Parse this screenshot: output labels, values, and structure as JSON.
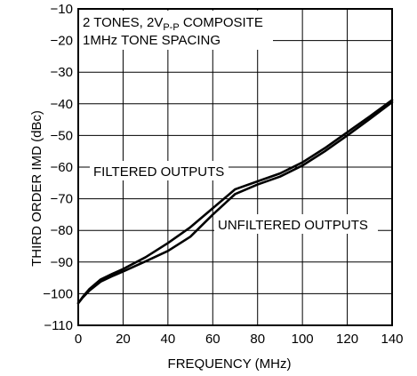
{
  "chart_data": {
    "type": "line",
    "title": "",
    "xlabel": "FREQUENCY (MHz)",
    "ylabel": "THIRD ORDER IMD (dBc)",
    "xlim": [
      0,
      140
    ],
    "ylim": [
      -110,
      -10
    ],
    "x_ticks": [
      "0",
      "20",
      "40",
      "60",
      "80",
      "100",
      "120",
      "140"
    ],
    "y_ticks": [
      "−10",
      "−20",
      "−30",
      "−40",
      "−50",
      "−60",
      "−70",
      "−80",
      "−90",
      "−100",
      "−110"
    ],
    "x_tick_values": [
      0,
      20,
      40,
      60,
      80,
      100,
      120,
      140
    ],
    "y_tick_values": [
      -10,
      -20,
      -30,
      -40,
      -50,
      -60,
      -70,
      -80,
      -90,
      -100,
      -110
    ],
    "grid": true,
    "series": [
      {
        "name": "FILTERED OUTPUTS",
        "x": [
          0,
          2,
          5,
          10,
          15,
          20,
          30,
          40,
          50,
          60,
          70,
          80,
          90,
          100,
          110,
          120,
          130,
          140
        ],
        "y": [
          -103,
          -101,
          -98.5,
          -95.5,
          -93.8,
          -92.2,
          -88.5,
          -84,
          -79,
          -73,
          -67,
          -64.5,
          -62,
          -58.5,
          -54,
          -49,
          -44,
          -38.8
        ]
      },
      {
        "name": "UNFILTERED OUTPUTS",
        "x": [
          0,
          2,
          5,
          10,
          15,
          20,
          30,
          40,
          50,
          60,
          70,
          80,
          90,
          100,
          110,
          120,
          130,
          140
        ],
        "y": [
          -103,
          -101.2,
          -99,
          -96.2,
          -94.5,
          -93,
          -89.8,
          -86.5,
          -82,
          -75,
          -68.5,
          -65.5,
          -63,
          -59.5,
          -55,
          -50,
          -44.8,
          -39.5
        ]
      }
    ],
    "annotations": {
      "conditions_line1_prefix": "2 TONES, 2V",
      "conditions_line1_sub": "P-P",
      "conditions_line1_suffix": " COMPOSITE",
      "conditions_line2": "1MHz TONE SPACING",
      "filtered_label": "FILTERED OUTPUTS",
      "unfiltered_label": "UNFILTERED OUTPUTS"
    }
  }
}
